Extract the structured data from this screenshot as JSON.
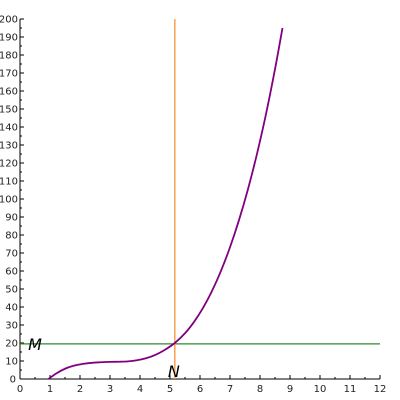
{
  "chart_data": {
    "type": "line",
    "title": "",
    "xlabel": "",
    "ylabel": "",
    "xlim": [
      0,
      12
    ],
    "ylim": [
      0,
      200
    ],
    "x_ticks": [
      0,
      1,
      2,
      3,
      4,
      5,
      6,
      7,
      8,
      9,
      10,
      11,
      12
    ],
    "y_ticks": [
      0,
      10,
      20,
      30,
      40,
      50,
      60,
      70,
      80,
      90,
      100,
      110,
      120,
      130,
      140,
      150,
      160,
      170,
      180,
      190,
      200
    ],
    "grid": false,
    "series": [
      {
        "color": "#800080",
        "x": [
          0.95,
          1.2,
          1.5,
          1.8,
          2.1,
          2.4,
          2.7,
          3.0,
          3.3,
          3.6,
          3.9,
          4.2,
          4.5,
          4.8,
          5.16,
          5.5,
          5.8,
          6.1,
          6.4,
          6.7,
          7.0,
          7.3,
          7.6,
          7.9,
          8.2,
          8.5,
          8.75
        ],
        "y": [
          0.0,
          3.0,
          5.7,
          7.4,
          8.4,
          9.0,
          9.3,
          9.5,
          9.6,
          9.8,
          10.4,
          11.5,
          13.3,
          15.9,
          20.0,
          25.4,
          31.7,
          39.5,
          48.9,
          60.1,
          73.2,
          88.3,
          105.5,
          125.1,
          147.2,
          172.1,
          195.0
        ]
      }
    ],
    "reference_lines": [
      {
        "orientation": "horizontal",
        "value": 19.5,
        "color": "#2e8b2e"
      },
      {
        "orientation": "vertical",
        "value": 5.16,
        "color": "#f5a350"
      }
    ],
    "annotations": [
      {
        "text": "M",
        "x": 0.5,
        "y": 19.5
      },
      {
        "text": "N",
        "x": 5.16,
        "y": 0
      }
    ]
  }
}
